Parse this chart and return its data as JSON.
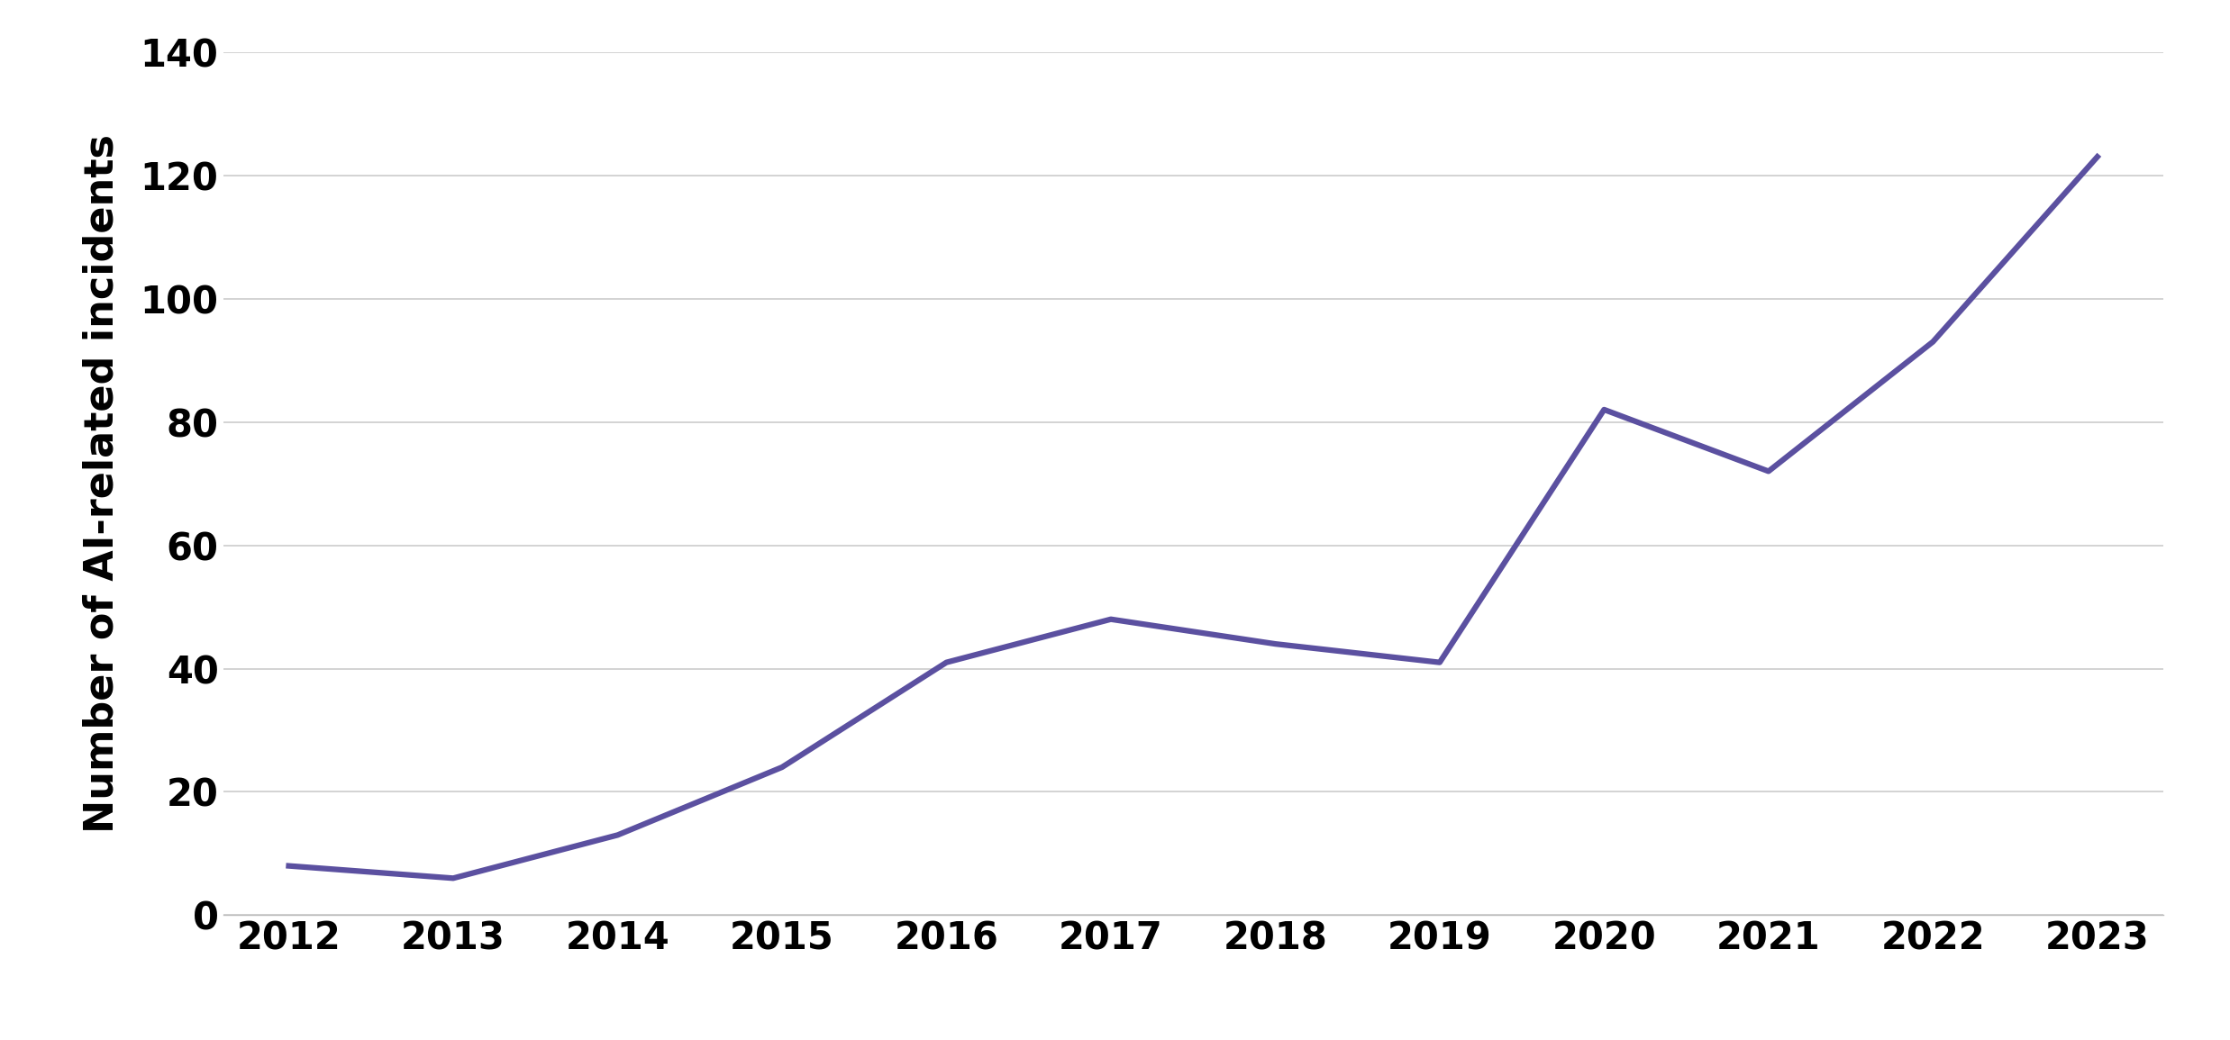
{
  "years": [
    2012,
    2013,
    2014,
    2015,
    2016,
    2017,
    2018,
    2019,
    2020,
    2021,
    2022,
    2023
  ],
  "values": [
    8,
    6,
    13,
    24,
    41,
    48,
    44,
    41,
    82,
    72,
    93,
    123
  ],
  "line_color": "#5b50a0",
  "line_width": 4.5,
  "ylabel": "Number of AI-related incidents",
  "ylim": [
    0,
    140
  ],
  "yticks": [
    0,
    20,
    40,
    60,
    80,
    100,
    120,
    140
  ],
  "background_color": "#ffffff",
  "grid_color": "#cccccc",
  "ylabel_fontsize": 32,
  "tick_fontsize": 30,
  "font_weight": "bold"
}
